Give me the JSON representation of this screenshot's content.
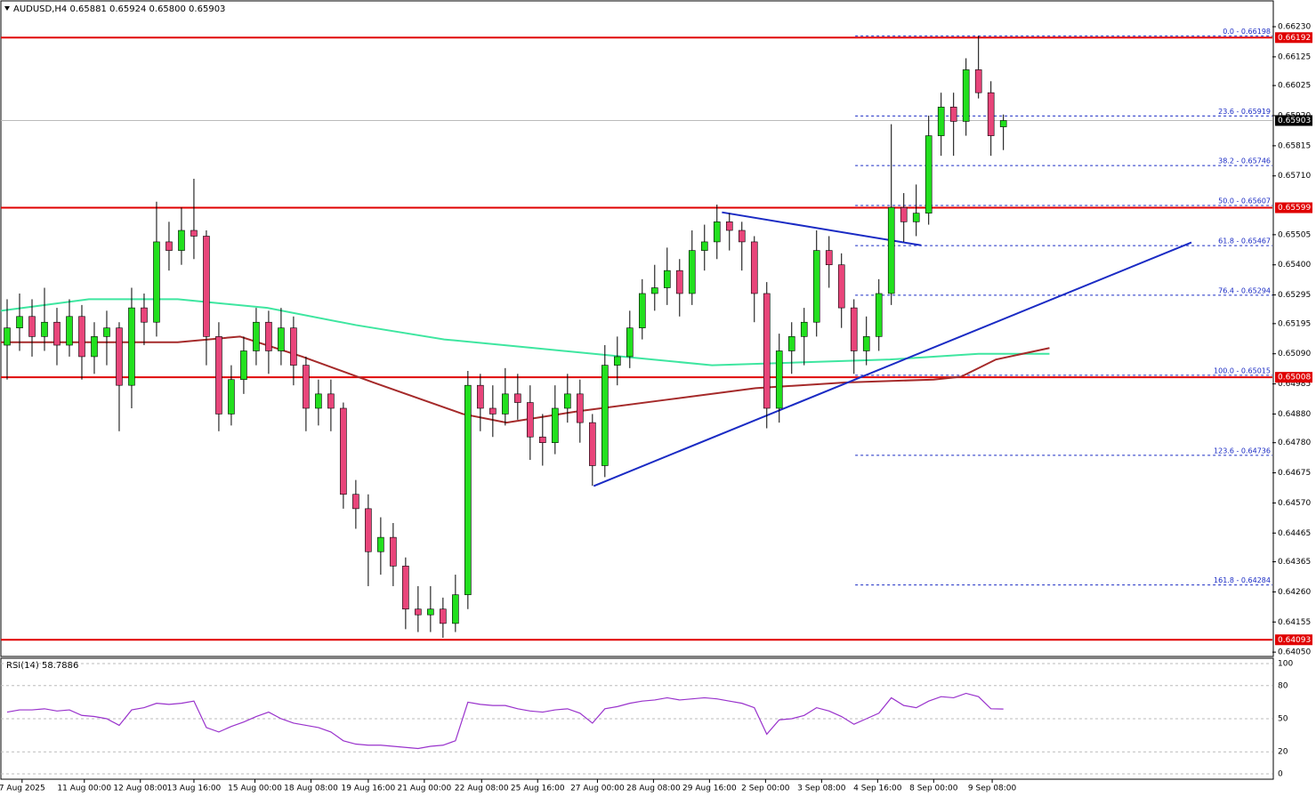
{
  "chart_data": [
    {
      "type": "candlestick",
      "title": "AUDUSD,H4  0.65881 0.65924 0.65800 0.65903",
      "up_color": "#22e01e",
      "down_color": "#e8457a",
      "ohlc": [
        [
          0.6512,
          0.6528,
          0.65,
          0.6518
        ],
        [
          0.6518,
          0.653,
          0.651,
          0.6522
        ],
        [
          0.6522,
          0.6528,
          0.6508,
          0.6515
        ],
        [
          0.6515,
          0.6532,
          0.651,
          0.652
        ],
        [
          0.652,
          0.6525,
          0.6505,
          0.6512
        ],
        [
          0.6512,
          0.6528,
          0.6508,
          0.6522
        ],
        [
          0.6522,
          0.6526,
          0.65,
          0.6508
        ],
        [
          0.6508,
          0.652,
          0.6502,
          0.6515
        ],
        [
          0.6515,
          0.6524,
          0.6505,
          0.6518
        ],
        [
          0.6518,
          0.652,
          0.6482,
          0.6498
        ],
        [
          0.6498,
          0.6532,
          0.649,
          0.6525
        ],
        [
          0.6525,
          0.653,
          0.6512,
          0.652
        ],
        [
          0.652,
          0.6562,
          0.6515,
          0.6548
        ],
        [
          0.6548,
          0.6555,
          0.6538,
          0.6545
        ],
        [
          0.6545,
          0.656,
          0.654,
          0.6552
        ],
        [
          0.6552,
          0.657,
          0.6542,
          0.655
        ],
        [
          0.655,
          0.6552,
          0.6505,
          0.6515
        ],
        [
          0.6515,
          0.652,
          0.6482,
          0.6488
        ],
        [
          0.6488,
          0.6505,
          0.6484,
          0.65
        ],
        [
          0.65,
          0.6515,
          0.6495,
          0.651
        ],
        [
          0.651,
          0.6525,
          0.6505,
          0.652
        ],
        [
          0.652,
          0.6524,
          0.6502,
          0.651
        ],
        [
          0.651,
          0.6525,
          0.6505,
          0.6518
        ],
        [
          0.6518,
          0.6522,
          0.6498,
          0.6505
        ],
        [
          0.6505,
          0.6508,
          0.6482,
          0.649
        ],
        [
          0.649,
          0.65,
          0.6484,
          0.6495
        ],
        [
          0.6495,
          0.65,
          0.6482,
          0.649
        ],
        [
          0.649,
          0.6492,
          0.6455,
          0.646
        ],
        [
          0.646,
          0.6465,
          0.6448,
          0.6455
        ],
        [
          0.6455,
          0.646,
          0.6428,
          0.644
        ],
        [
          0.644,
          0.6452,
          0.6432,
          0.6445
        ],
        [
          0.6445,
          0.645,
          0.6428,
          0.6435
        ],
        [
          0.6435,
          0.6438,
          0.6413,
          0.642
        ],
        [
          0.642,
          0.6428,
          0.6412,
          0.6418
        ],
        [
          0.6418,
          0.6428,
          0.6412,
          0.642
        ],
        [
          0.642,
          0.6424,
          0.641,
          0.6415
        ],
        [
          0.6415,
          0.6432,
          0.6412,
          0.6425
        ],
        [
          0.6425,
          0.6503,
          0.642,
          0.6498
        ],
        [
          0.6498,
          0.6502,
          0.6482,
          0.649
        ],
        [
          0.649,
          0.6498,
          0.648,
          0.6488
        ],
        [
          0.6488,
          0.6504,
          0.6484,
          0.6495
        ],
        [
          0.6495,
          0.6502,
          0.6486,
          0.6492
        ],
        [
          0.6492,
          0.6498,
          0.6472,
          0.648
        ],
        [
          0.648,
          0.6488,
          0.647,
          0.6478
        ],
        [
          0.6478,
          0.6498,
          0.6474,
          0.649
        ],
        [
          0.649,
          0.6502,
          0.6485,
          0.6495
        ],
        [
          0.6495,
          0.65,
          0.6478,
          0.6485
        ],
        [
          0.6485,
          0.6488,
          0.6463,
          0.647
        ],
        [
          0.647,
          0.6512,
          0.6466,
          0.6505
        ],
        [
          0.6505,
          0.6515,
          0.6498,
          0.6508
        ],
        [
          0.6508,
          0.6524,
          0.6504,
          0.6518
        ],
        [
          0.6518,
          0.6535,
          0.6514,
          0.653
        ],
        [
          0.653,
          0.654,
          0.6524,
          0.6532
        ],
        [
          0.6532,
          0.6546,
          0.6526,
          0.6538
        ],
        [
          0.6538,
          0.6542,
          0.6522,
          0.653
        ],
        [
          0.653,
          0.6552,
          0.6526,
          0.6545
        ],
        [
          0.6545,
          0.6554,
          0.6538,
          0.6548
        ],
        [
          0.6548,
          0.6561,
          0.6542,
          0.6555
        ],
        [
          0.6555,
          0.6558,
          0.6545,
          0.6552
        ],
        [
          0.6552,
          0.6555,
          0.6538,
          0.6548
        ],
        [
          0.6548,
          0.655,
          0.652,
          0.653
        ],
        [
          0.653,
          0.6534,
          0.6483,
          0.649
        ],
        [
          0.649,
          0.6516,
          0.6485,
          0.651
        ],
        [
          0.651,
          0.652,
          0.6502,
          0.6515
        ],
        [
          0.6515,
          0.6525,
          0.6505,
          0.652
        ],
        [
          0.652,
          0.6552,
          0.6515,
          0.6545
        ],
        [
          0.6545,
          0.655,
          0.6532,
          0.654
        ],
        [
          0.654,
          0.6544,
          0.6518,
          0.6525
        ],
        [
          0.6525,
          0.6528,
          0.6502,
          0.651
        ],
        [
          0.651,
          0.6522,
          0.6505,
          0.6515
        ],
        [
          0.6515,
          0.6535,
          0.651,
          0.653
        ],
        [
          0.653,
          0.6589,
          0.6526,
          0.656
        ],
        [
          0.656,
          0.6565,
          0.6548,
          0.6555
        ],
        [
          0.6555,
          0.6568,
          0.655,
          0.6558
        ],
        [
          0.6558,
          0.6592,
          0.6554,
          0.6585
        ],
        [
          0.6585,
          0.66,
          0.6578,
          0.6595
        ],
        [
          0.6595,
          0.66,
          0.6578,
          0.659
        ],
        [
          0.659,
          0.6612,
          0.6585,
          0.6608
        ],
        [
          0.6608,
          0.66198,
          0.6598,
          0.66
        ],
        [
          0.66,
          0.6604,
          0.6578,
          0.6585
        ],
        [
          0.65881,
          0.65924,
          0.658,
          0.65903
        ]
      ],
      "xlim": [
        -0.5,
        101.6
      ],
      "xticks": [
        {
          "value": 1.2,
          "label": "7 Aug 2025"
        },
        {
          "value": 6.2,
          "label": "11 Aug 00:00"
        },
        {
          "value": 10.7,
          "label": "12 Aug 08:00"
        },
        {
          "value": 15,
          "label": "13 Aug 16:00"
        },
        {
          "value": 19.9,
          "label": "15 Aug 00:00"
        },
        {
          "value": 24.4,
          "label": "18 Aug 08:00"
        },
        {
          "value": 29,
          "label": "19 Aug 16:00"
        },
        {
          "value": 33.5,
          "label": "21 Aug 00:00"
        },
        {
          "value": 38.1,
          "label": "22 Aug 08:00"
        },
        {
          "value": 42.6,
          "label": "25 Aug 16:00"
        },
        {
          "value": 47.4,
          "label": "27 Aug 00:00"
        },
        {
          "value": 51.9,
          "label": "28 Aug 08:00"
        },
        {
          "value": 56.4,
          "label": "29 Aug 16:00"
        },
        {
          "value": 60.9,
          "label": "2 Sep 00:00"
        },
        {
          "value": 65.4,
          "label": "3 Sep 08:00"
        },
        {
          "value": 69.9,
          "label": "4 Sep 16:00"
        },
        {
          "value": 74.4,
          "label": "8 Sep 00:00"
        },
        {
          "value": 79.1,
          "label": "9 Sep 08:00"
        }
      ],
      "ylim": [
        0.64038,
        0.6632
      ],
      "yticks": [
        {
          "value": 0.6623,
          "label": "0.66230"
        },
        0.66125,
        0.66025,
        {
          "value": 0.6592,
          "label": "0.65920"
        },
        0.65815,
        {
          "value": 0.6571,
          "label": "0.65710"
        },
        0.65505,
        {
          "value": 0.654,
          "label": "0.65400"
        },
        0.65295,
        0.65195,
        {
          "value": 0.6509,
          "label": "0.65090"
        },
        0.64985,
        {
          "value": 0.6488,
          "label": "0.64880"
        },
        {
          "value": 0.6478,
          "label": "0.64780"
        },
        0.64675,
        {
          "value": 0.6457,
          "label": "0.64570"
        },
        0.64465,
        0.64365,
        {
          "value": 0.6426,
          "label": "0.64260"
        },
        0.64155,
        {
          "value": 0.6405,
          "label": "0.64050"
        }
      ],
      "levels_color": "#e00000",
      "levels": [
        0.66192,
        0.65599,
        0.65008,
        0.64093
      ],
      "current_price": 0.65903,
      "fib_start_x": 68.1,
      "fib_color": "#1a2bc4",
      "fib_levels": [
        {
          "value": 0.66198,
          "label": "0.0 - 0.66198"
        },
        {
          "value": 0.65919,
          "label": "23.6 - 0.65919"
        },
        {
          "value": 0.65746,
          "label": "38.2 - 0.65746"
        },
        {
          "value": 0.65607,
          "label": "50.0 - 0.65607"
        },
        {
          "value": 0.65467,
          "label": "61.8 - 0.65467"
        },
        {
          "value": 0.65294,
          "label": "76.4 - 0.65294"
        },
        {
          "value": 0.65015,
          "label": "100.0 - 0.65015"
        },
        {
          "value": 0.64736,
          "label": "123.6 - 0.64736"
        },
        {
          "value": 0.64284,
          "label": "161.8 - 0.64284"
        }
      ],
      "moving_averages": [
        {
          "color": "#3ee6a0",
          "x": [
            -0.5,
            6.57,
            13.7,
            20.9,
            28,
            35.1,
            42.3,
            49.4,
            56.6,
            63.7,
            70.9,
            78,
            83.7
          ],
          "values": [
            0.6524,
            0.6528,
            0.6528,
            0.6525,
            0.6519,
            0.6514,
            0.6511,
            0.6508,
            0.6505,
            0.6506,
            0.6507,
            0.6509,
            0.6509
          ]
        },
        {
          "color": "#a52a2a",
          "x": [
            -0.5,
            6.57,
            13.7,
            18.7,
            23.7,
            29.4,
            36.6,
            40.1,
            45.9,
            53,
            60.1,
            67.3,
            74.4,
            76.6,
            79.4,
            83.7
          ],
          "values": [
            0.6513,
            0.6513,
            0.6513,
            0.6515,
            0.6508,
            0.6499,
            0.6488,
            0.6485,
            0.6489,
            0.6493,
            0.6497,
            0.6499,
            0.65,
            0.6501,
            0.6507,
            0.6511
          ]
        }
      ],
      "trendline_color": "#1a2bc4",
      "trendlines": [
        {
          "x": [
            47.1,
            95.1
          ],
          "values": [
            0.64629,
            0.65478
          ]
        },
        {
          "x": [
            57.4,
            73.4
          ],
          "values": [
            0.65583,
            0.65468
          ]
        }
      ]
    },
    {
      "type": "line",
      "title": "RSI(14) 58.7886",
      "color": "#9932cc",
      "values": [
        56,
        58,
        58,
        59,
        57,
        58,
        53,
        52,
        50,
        44,
        58,
        60,
        64,
        63,
        64,
        66,
        42,
        38,
        43,
        47,
        52,
        56,
        50,
        46,
        44,
        42,
        38,
        30,
        27,
        26,
        26,
        25,
        24,
        23,
        25,
        26,
        30,
        65,
        63,
        62,
        62,
        59,
        57,
        56,
        58,
        59,
        55,
        46,
        59,
        61,
        64,
        66,
        67,
        69,
        67,
        68,
        69,
        68,
        66,
        64,
        60,
        36,
        49,
        50,
        53,
        60,
        57,
        52,
        45,
        50,
        55,
        69,
        62,
        60,
        66,
        70,
        69,
        73,
        70,
        59,
        58.7886
      ],
      "ylim": [
        0,
        100
      ],
      "yticks": [
        100,
        80,
        50,
        20,
        0
      ]
    }
  ]
}
